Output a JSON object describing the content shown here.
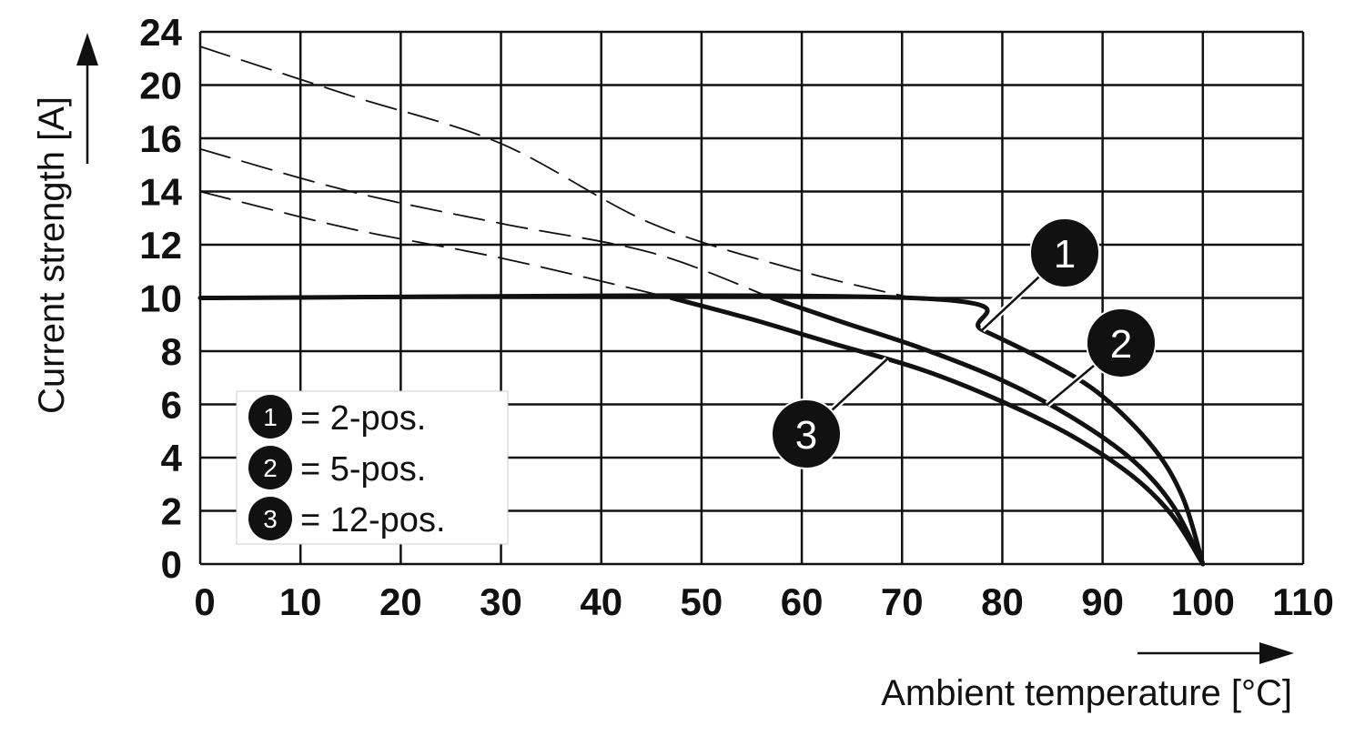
{
  "chart_data": {
    "type": "line",
    "xlabel": "Ambient temperature [°C]",
    "ylabel": "Current strength [A]",
    "x_ticks": [
      "0",
      "10",
      "20",
      "30",
      "40",
      "50",
      "60",
      "70",
      "80",
      "90",
      "100",
      "110"
    ],
    "y_ticks": [
      "0",
      "2",
      "4",
      "6",
      "8",
      "10",
      "12",
      "14",
      "16",
      "20",
      "24"
    ],
    "xlim": [
      0,
      110
    ],
    "ylim": [
      0,
      24
    ],
    "grid": true,
    "legend_position": "bottom-left",
    "legend": [
      {
        "marker": "1",
        "text": "= 2-pos."
      },
      {
        "marker": "2",
        "text": "= 5-pos."
      },
      {
        "marker": "3",
        "text": "= 12-pos."
      }
    ],
    "series": [
      {
        "marker": "1",
        "style": "solid",
        "points": [
          [
            0,
            10
          ],
          [
            71,
            10
          ],
          [
            78,
            8.8
          ],
          [
            85,
            7.5
          ],
          [
            90,
            6.3
          ],
          [
            95,
            4.4
          ],
          [
            98,
            2.5
          ],
          [
            100,
            0
          ]
        ]
      },
      {
        "marker": "2",
        "style": "solid",
        "points": [
          [
            57,
            10
          ],
          [
            64,
            9.1
          ],
          [
            72,
            8.1
          ],
          [
            80,
            6.9
          ],
          [
            87,
            5.5
          ],
          [
            93,
            3.9
          ],
          [
            97,
            2.2
          ],
          [
            100,
            0
          ]
        ]
      },
      {
        "marker": "3",
        "style": "solid",
        "points": [
          [
            47,
            10
          ],
          [
            55,
            9.2
          ],
          [
            63,
            8.3
          ],
          [
            72,
            7.3
          ],
          [
            80,
            6.1
          ],
          [
            87,
            4.8
          ],
          [
            93,
            3.3
          ],
          [
            97,
            1.8
          ],
          [
            100,
            0
          ]
        ]
      },
      {
        "marker": "1",
        "style": "dashed",
        "points": [
          [
            0,
            22.9
          ],
          [
            15,
            19.2
          ],
          [
            30,
            15.8
          ],
          [
            45,
            12.8
          ],
          [
            60,
            11.0
          ],
          [
            71,
            10
          ]
        ]
      },
      {
        "marker": "2",
        "style": "dashed",
        "points": [
          [
            0,
            15.6
          ],
          [
            15,
            14.0
          ],
          [
            30,
            12.8
          ],
          [
            45,
            11.7
          ],
          [
            57,
            10
          ]
        ]
      },
      {
        "marker": "3",
        "style": "dashed",
        "points": [
          [
            0,
            14
          ],
          [
            15,
            12.6
          ],
          [
            30,
            11.5
          ],
          [
            47,
            10
          ]
        ]
      }
    ],
    "callouts": [
      {
        "marker": "1",
        "at": [
          78,
          8.8
        ]
      },
      {
        "marker": "2",
        "at": [
          84.5,
          6.0
        ]
      },
      {
        "marker": "3",
        "at": [
          68.5,
          7.7
        ]
      }
    ]
  }
}
